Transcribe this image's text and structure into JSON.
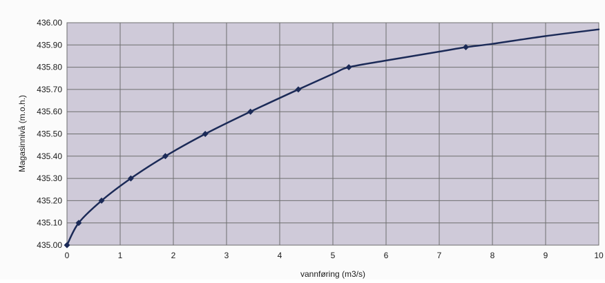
{
  "chart_data": {
    "type": "line",
    "title": "",
    "xlabel": "vannføring (m3/s)",
    "ylabel": "Magasinnivå (m.o.h.)",
    "xlim": [
      0,
      10
    ],
    "ylim": [
      435.0,
      436.0
    ],
    "x_ticks": [
      "0",
      "1",
      "2",
      "3",
      "4",
      "5",
      "6",
      "7",
      "8",
      "9",
      "10"
    ],
    "y_ticks": [
      "435.00",
      "435.10",
      "435.20",
      "435.30",
      "435.40",
      "435.50",
      "435.60",
      "435.70",
      "435.80",
      "435.90",
      "436.00"
    ],
    "grid": true,
    "legend": "none",
    "series": [
      {
        "markers": [
          {
            "x": 0.0,
            "y": 435.0
          },
          {
            "x": 0.22,
            "y": 435.1
          },
          {
            "x": 0.65,
            "y": 435.2
          },
          {
            "x": 1.2,
            "y": 435.3
          },
          {
            "x": 1.85,
            "y": 435.4
          },
          {
            "x": 2.6,
            "y": 435.5
          },
          {
            "x": 3.45,
            "y": 435.6
          },
          {
            "x": 4.35,
            "y": 435.7
          },
          {
            "x": 5.3,
            "y": 435.8
          },
          {
            "x": 7.5,
            "y": 435.89
          }
        ],
        "curve": [
          {
            "x": 0.0,
            "y": 435.0
          },
          {
            "x": 0.22,
            "y": 435.1
          },
          {
            "x": 0.65,
            "y": 435.2
          },
          {
            "x": 1.2,
            "y": 435.3
          },
          {
            "x": 1.85,
            "y": 435.4
          },
          {
            "x": 2.6,
            "y": 435.5
          },
          {
            "x": 3.45,
            "y": 435.6
          },
          {
            "x": 4.35,
            "y": 435.7
          },
          {
            "x": 5.0,
            "y": 435.77
          },
          {
            "x": 5.3,
            "y": 435.8
          },
          {
            "x": 6.0,
            "y": 435.83
          },
          {
            "x": 7.0,
            "y": 435.87
          },
          {
            "x": 7.5,
            "y": 435.89
          },
          {
            "x": 8.0,
            "y": 435.905
          },
          {
            "x": 9.0,
            "y": 435.94
          },
          {
            "x": 10.0,
            "y": 435.97
          }
        ]
      }
    ]
  },
  "colors": {
    "plot_background": "#cfcad9",
    "grid": "#6e6e6e",
    "line": "#1b2a57",
    "text": "#1a1a1a"
  }
}
